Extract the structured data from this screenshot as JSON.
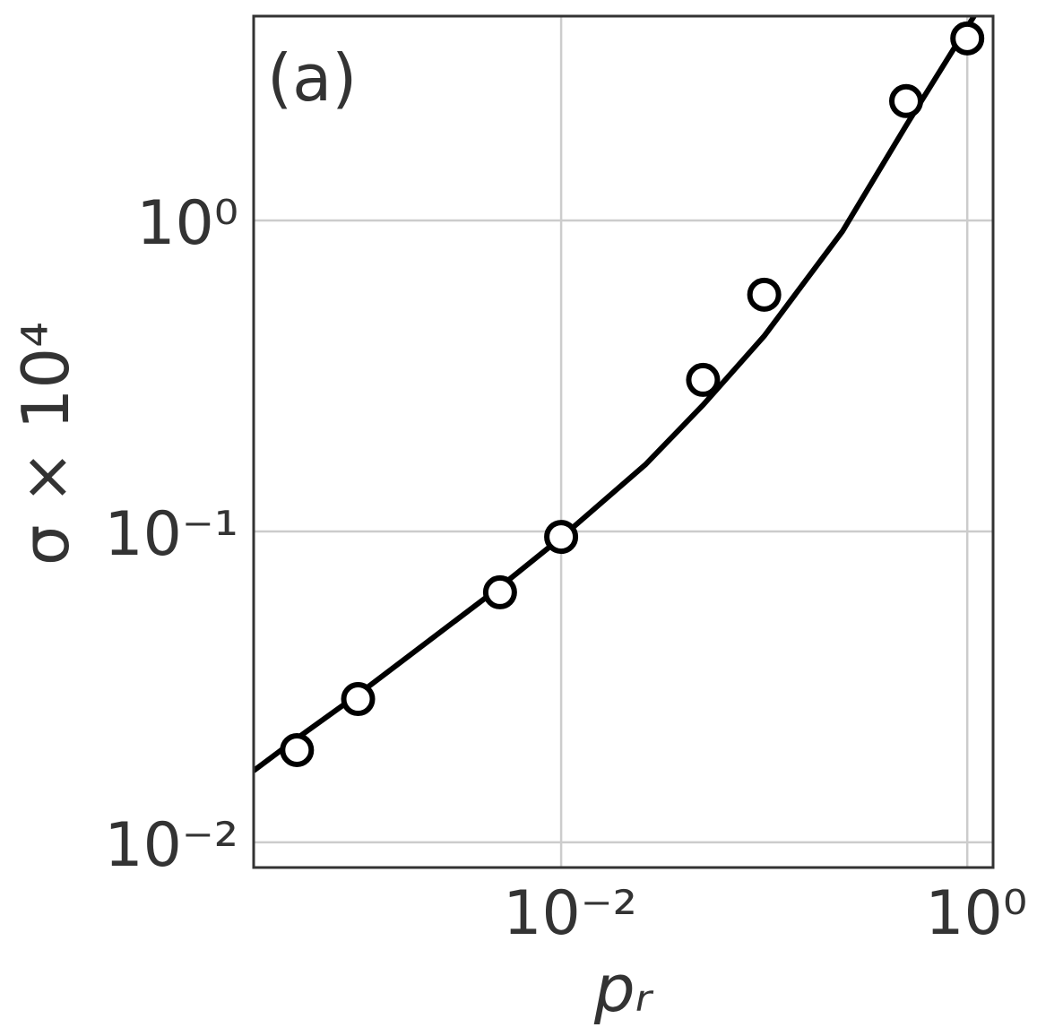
{
  "chart_data": {
    "type": "line",
    "annotation": "(a)",
    "xlabel": "pᵣ",
    "ylabel": "σ × 10⁴",
    "xscale": "log",
    "yscale": "log",
    "grid": true,
    "xlim": [
      0.000306,
      1.34
    ],
    "ylim": [
      0.0083,
      4.54
    ],
    "xticks": [
      {
        "value": 0.01,
        "label": "10⁻²"
      },
      {
        "value": 1,
        "label": "10⁰"
      }
    ],
    "yticks": [
      {
        "value": 0.01,
        "label": "10⁻²"
      },
      {
        "value": 0.1,
        "label": "10⁻¹"
      },
      {
        "value": 1,
        "label": "10⁰"
      }
    ],
    "series": [
      {
        "type": "scatter",
        "color": "#000000",
        "x": [
          0.0005,
          0.001,
          0.005,
          0.01,
          0.05,
          0.1,
          0.5,
          1
        ],
        "values": [
          0.0198,
          0.0289,
          0.0637,
          0.096,
          0.307,
          0.577,
          2.42,
          3.85
        ]
      },
      {
        "type": "line",
        "color": "#000000",
        "x": [
          0.000306,
          0.0005,
          0.001,
          0.005,
          0.01,
          0.026,
          0.05,
          0.1,
          0.243,
          0.5,
          1.08
        ],
        "values": [
          0.017,
          0.0216,
          0.0299,
          0.0663,
          0.0955,
          0.164,
          0.255,
          0.425,
          0.923,
          2.02,
          4.54
        ]
      }
    ]
  }
}
